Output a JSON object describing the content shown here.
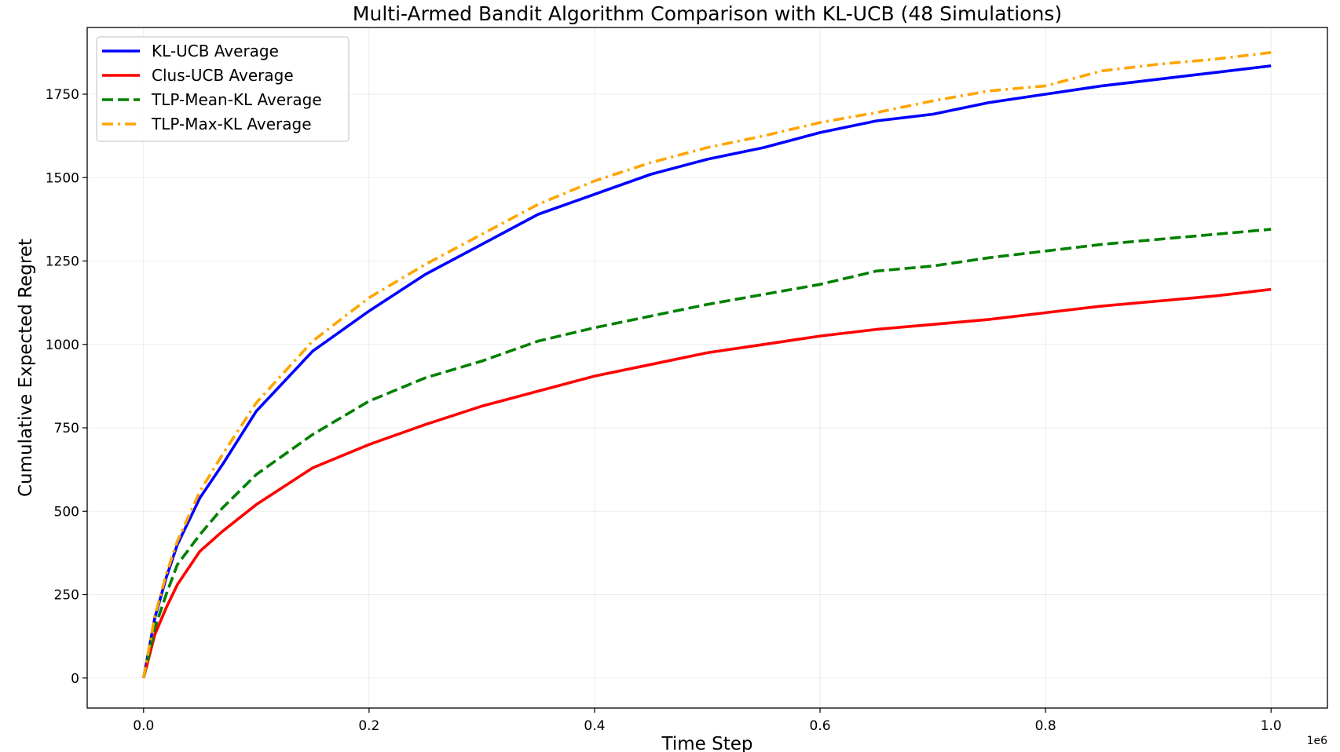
{
  "chart_data": {
    "type": "line",
    "title": "Multi-Armed Bandit Algorithm Comparison with KL-UCB (48 Simulations)",
    "xlabel": "Time Step",
    "ylabel": "Cumulative Expected Regret",
    "x_offset_label": "1e6",
    "xlim": [
      -0.05,
      1.05
    ],
    "ylim": [
      -90,
      1950
    ],
    "xticks": [
      0.0,
      0.2,
      0.4,
      0.6,
      0.8,
      1.0
    ],
    "xtick_labels": [
      "0.0",
      "0.2",
      "0.4",
      "0.6",
      "0.8",
      "1.0"
    ],
    "yticks": [
      0,
      250,
      500,
      750,
      1000,
      1250,
      1500,
      1750
    ],
    "ytick_labels": [
      "0",
      "250",
      "500",
      "750",
      "1000",
      "1250",
      "1500",
      "1750"
    ],
    "grid": true,
    "legend_position": "top-left",
    "x": [
      0.0,
      0.01,
      0.02,
      0.03,
      0.05,
      0.07,
      0.1,
      0.15,
      0.2,
      0.25,
      0.3,
      0.35,
      0.4,
      0.45,
      0.5,
      0.55,
      0.6,
      0.65,
      0.7,
      0.75,
      0.8,
      0.85,
      0.9,
      0.95,
      1.0
    ],
    "series": [
      {
        "name": "KL-UCB Average",
        "color": "#0000ff",
        "style": "solid",
        "values": [
          0,
          180,
          300,
          400,
          540,
          640,
          800,
          980,
          1100,
          1210,
          1300,
          1390,
          1450,
          1510,
          1555,
          1590,
          1635,
          1670,
          1690,
          1725,
          1750,
          1775,
          1795,
          1815,
          1835
        ]
      },
      {
        "name": "Clus-UCB Average",
        "color": "#ff0000",
        "style": "solid",
        "values": [
          0,
          130,
          210,
          280,
          380,
          440,
          520,
          630,
          700,
          760,
          815,
          860,
          905,
          940,
          975,
          1000,
          1025,
          1045,
          1060,
          1075,
          1095,
          1115,
          1130,
          1145,
          1165
        ]
      },
      {
        "name": "TLP-Mean-KL Average",
        "color": "#008000",
        "style": "dashed",
        "values": [
          0,
          150,
          250,
          340,
          430,
          510,
          610,
          730,
          830,
          900,
          950,
          1010,
          1050,
          1085,
          1120,
          1150,
          1180,
          1220,
          1235,
          1260,
          1280,
          1300,
          1315,
          1330,
          1345
        ]
      },
      {
        "name": "TLP-Max-KL Average",
        "color": "#ffa500",
        "style": "dashdot",
        "values": [
          0,
          185,
          310,
          410,
          560,
          670,
          825,
          1010,
          1140,
          1240,
          1330,
          1420,
          1490,
          1545,
          1590,
          1625,
          1665,
          1695,
          1730,
          1760,
          1775,
          1820,
          1840,
          1855,
          1875
        ]
      }
    ]
  }
}
